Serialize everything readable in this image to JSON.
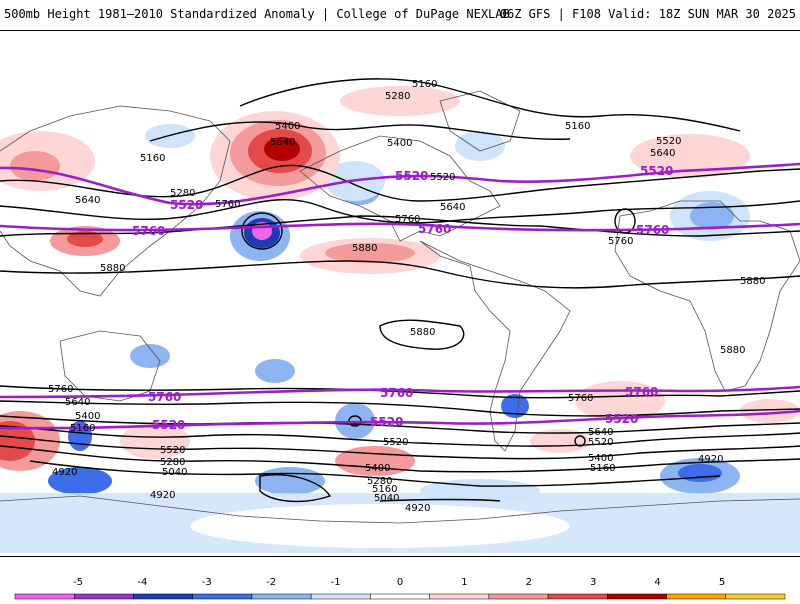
{
  "header": {
    "title_left": "500mb Height 1981–2010 Standardized Anomaly | College of DuPage NEXLAB",
    "title_right": "06Z GFS | F108 Valid: 18Z SUN MAR 30 2025"
  },
  "contour_labels": {
    "black": [
      "5160",
      "5280",
      "5400",
      "5640",
      "5160",
      "5280",
      "5640",
      "5760",
      "5880",
      "5880",
      "5880",
      "5760",
      "5640",
      "5520",
      "5400",
      "5160",
      "4920",
      "4920",
      "5400",
      "5280",
      "5160",
      "5040",
      "4920",
      "5520",
      "5640",
      "5760",
      "5520",
      "5400",
      "5280",
      "5160",
      "5040",
      "4920",
      "5520",
      "5640",
      "5880",
      "5760",
      "5160",
      "5400",
      "5520",
      "5640",
      "5760",
      "5880"
    ],
    "purple": [
      "5520",
      "5760",
      "5520",
      "5760",
      "5520",
      "5760",
      "5760",
      "5520",
      "5760",
      "5520",
      "5520",
      "5760"
    ]
  },
  "colorbar": {
    "ticks": [
      "-5",
      "-4",
      "-3",
      "-2",
      "-1",
      "0",
      "1",
      "2",
      "3",
      "4",
      "5"
    ],
    "colors": [
      "#ee66ee",
      "#9933cc",
      "#1f3bb3",
      "#3b6ee8",
      "#8cb4f0",
      "#cfe3fa",
      "#ffffff",
      "#ffd6d6",
      "#f59a9a",
      "#e44a4a",
      "#b30000",
      "#ffa500",
      "#ffcc33"
    ]
  }
}
